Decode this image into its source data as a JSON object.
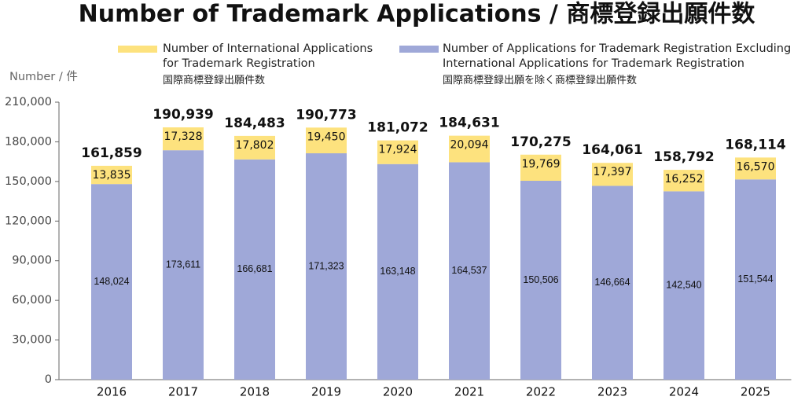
{
  "chart_data": {
    "type": "stacked-bar",
    "title": "Number of Trademark Applications / 商標登録出願件数",
    "y_label": "Number / 件",
    "categories": [
      "2016",
      "2017",
      "2018",
      "2019",
      "2020",
      "2021",
      "2022",
      "2023",
      "2024",
      "2025"
    ],
    "series": [
      {
        "name": "Number of Applications for Trademark Registration Excluding International Applications for Trademark Registration",
        "name_ja": "国際商標登録出願を除く商標登録出願件数",
        "color": "#9fa8d8",
        "values": [
          148024,
          173611,
          166681,
          171323,
          163148,
          164537,
          150506,
          146664,
          142540,
          151544
        ],
        "value_labels": [
          "148,024",
          "173,611",
          "166,681",
          "171,323",
          "163,148",
          "164,537",
          "150,506",
          "146,664",
          "142,540",
          "151,544"
        ]
      },
      {
        "name": "Number of International Applications for Trademark Registration",
        "name_ja": "国際商標登録出願件数",
        "color": "#fde27e",
        "values": [
          13835,
          17328,
          17802,
          19450,
          17924,
          20094,
          19769,
          17397,
          16252,
          16570
        ],
        "value_labels": [
          "13,835",
          "17,328",
          "17,802",
          "19,450",
          "17,924",
          "20,094",
          "19,769",
          "17,397",
          "16,252",
          "16,570"
        ]
      }
    ],
    "totals": {
      "values": [
        161859,
        190939,
        184483,
        190773,
        181072,
        184631,
        170275,
        164061,
        158792,
        168114
      ],
      "value_labels": [
        "161,859",
        "190,939",
        "184,483",
        "190,773",
        "181,072",
        "184,631",
        "170,275",
        "164,061",
        "158,792",
        "168,114"
      ]
    },
    "ylim": [
      0,
      210000
    ],
    "yticks": [
      0,
      {
        "value": 30000,
        "label": "30,000"
      },
      {
        "value": 60000,
        "label": "60,000"
      },
      {
        "value": 90000,
        "label": "90,000"
      },
      {
        "value": 120000,
        "label": "120,000"
      },
      {
        "value": 150000,
        "label": "150,000"
      },
      {
        "value": 180000,
        "label": "180,000"
      },
      {
        "value": 210000,
        "label": "210,000"
      }
    ],
    "grid": false
  }
}
